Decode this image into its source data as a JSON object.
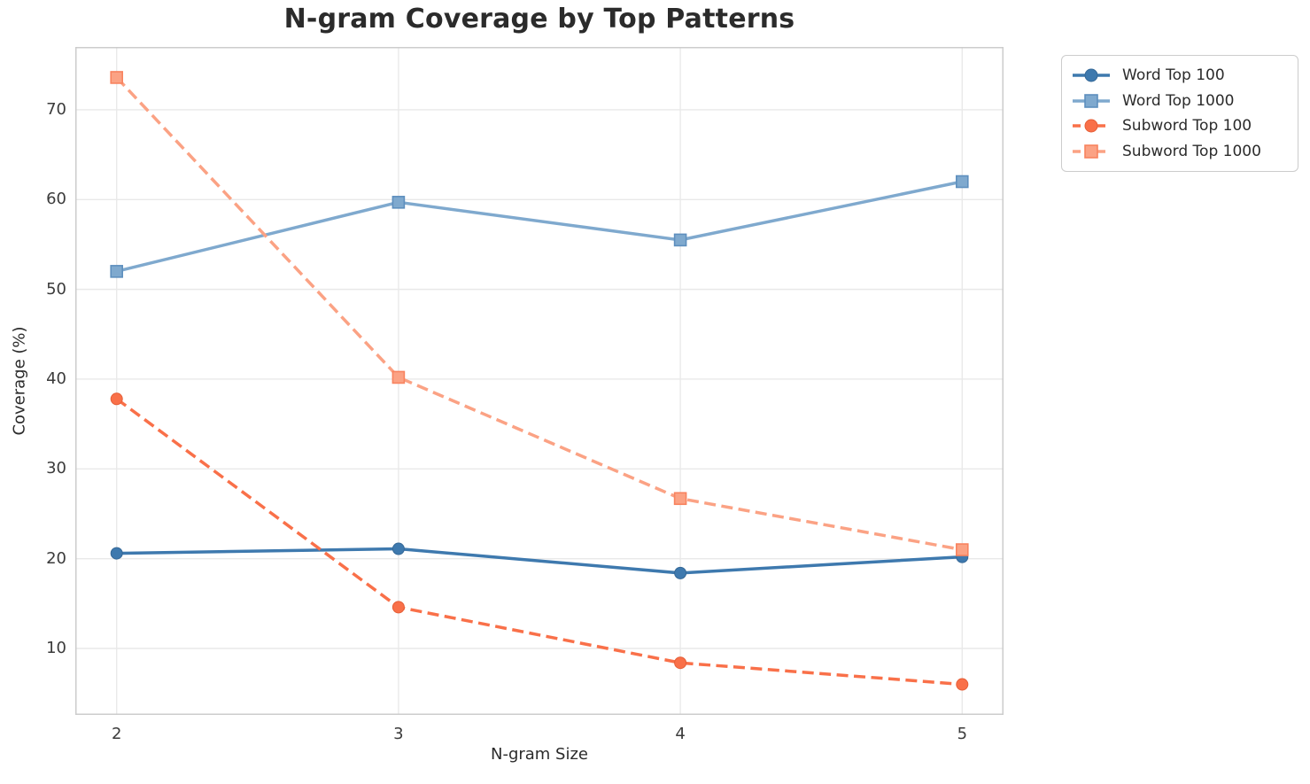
{
  "chart_data": {
    "type": "line",
    "title": "N-gram Coverage by Top Patterns",
    "xlabel": "N-gram Size",
    "ylabel": "Coverage (%)",
    "x": [
      2,
      3,
      4,
      5
    ],
    "x_tick_labels": [
      "2",
      "3",
      "4",
      "5"
    ],
    "y_ticks": [
      10,
      20,
      30,
      40,
      50,
      60,
      70
    ],
    "ylim": [
      2.6,
      77.0
    ],
    "grid": true,
    "legend_position": "outside-upper-right",
    "series": [
      {
        "name": "Word Top 100",
        "values": [
          20.6,
          21.1,
          18.4,
          20.2
        ],
        "color": "#3E79AE",
        "edge": "#356897",
        "marker": "circle",
        "line_style": "solid"
      },
      {
        "name": "Word Top 1000",
        "values": [
          52.0,
          59.7,
          55.5,
          62.0
        ],
        "color": "#7FA9CE",
        "edge": "#5E8FBE",
        "marker": "square",
        "line_style": "solid"
      },
      {
        "name": "Subword Top 100",
        "values": [
          37.8,
          14.6,
          8.4,
          6.0
        ],
        "color": "#F97049",
        "edge": "#E55F38",
        "marker": "circle",
        "line_style": "dashed"
      },
      {
        "name": "Subword Top 1000",
        "values": [
          73.6,
          40.2,
          26.7,
          21.0
        ],
        "color": "#FBA284",
        "edge": "#F8835F",
        "marker": "square",
        "line_style": "dashed"
      }
    ],
    "colors": {
      "grid": "#e9e9e9",
      "spine": "#cccccc",
      "tick_text": "#3b3b3b",
      "title_text": "#2b2b2b"
    }
  }
}
